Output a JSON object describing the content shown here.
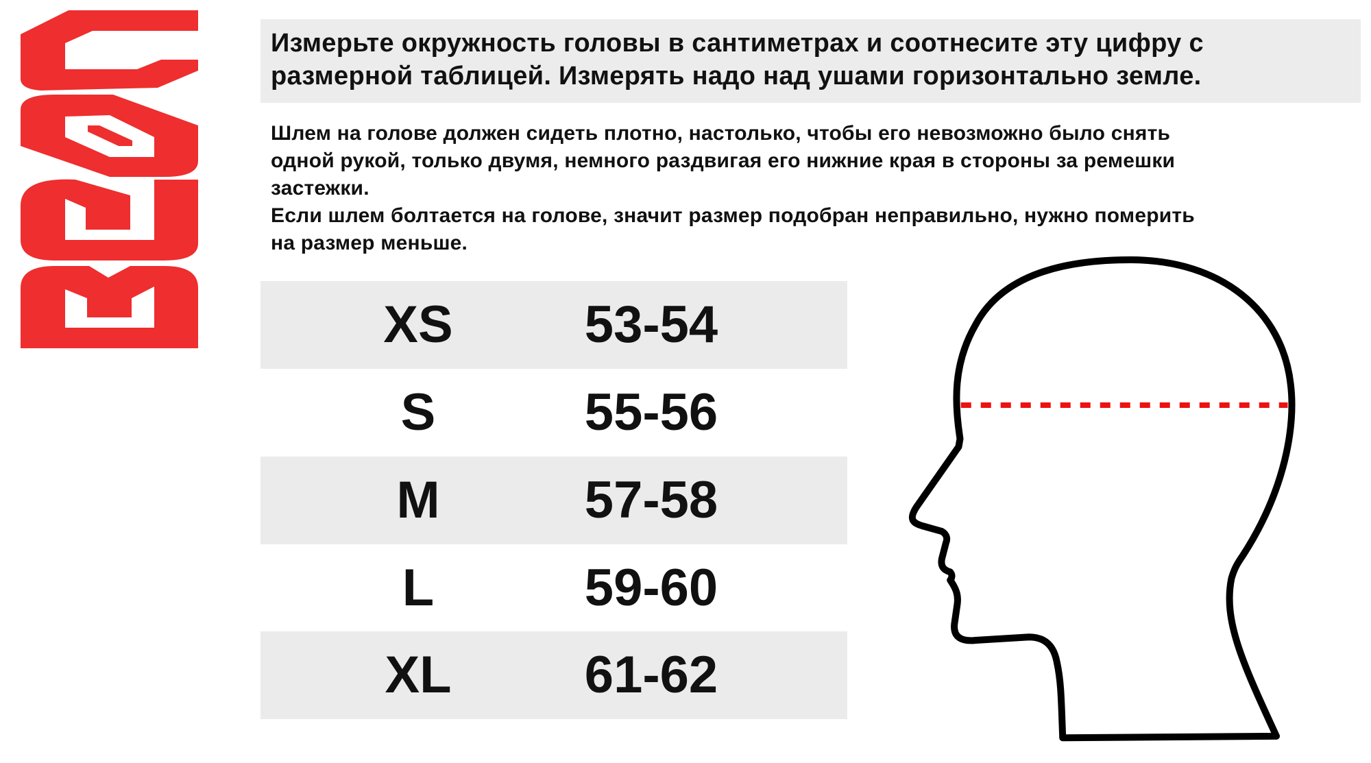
{
  "brand": {
    "logo_text": "BEON",
    "color": "#ee2e2f"
  },
  "header": {
    "lines": [
      "Измерьте окружность головы в сантиметрах и соотнесите эту цифру с",
      "размерной таблицей. Измерять надо над ушами горизонтально земле."
    ]
  },
  "instructions": {
    "lines": [
      "Шлем на голове должен сидеть плотно, настолько, чтобы его невозможно было снять",
      "одной рукой, только двумя, немного раздвигая его нижние края в стороны за ремешки",
      "застежки.",
      "Если шлем болтается на голове, значит размер подобран неправильно, нужно померить",
      "на размер меньше."
    ]
  },
  "size_table": {
    "rows": [
      {
        "size": "XS",
        "range": "53-54"
      },
      {
        "size": "S",
        "range": "55-56"
      },
      {
        "size": "M",
        "range": "57-58"
      },
      {
        "size": "L",
        "range": "59-60"
      },
      {
        "size": "XL",
        "range": "61-62"
      }
    ]
  },
  "illustration": {
    "icon": "head-profile-icon",
    "measure_line_color": "#ee1111"
  }
}
